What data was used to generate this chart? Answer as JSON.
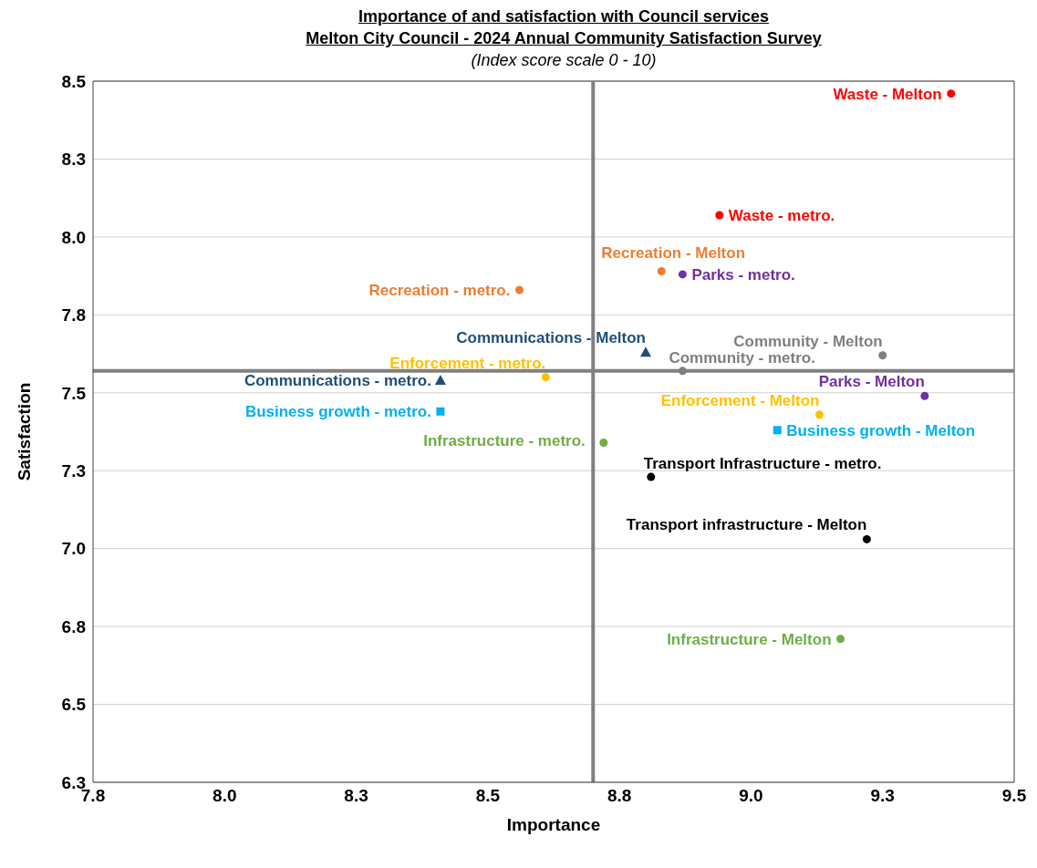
{
  "chart_data": {
    "type": "scatter",
    "title": "Importance of and satisfaction with Council services",
    "subtitle": "Melton City Council - 2024 Annual Community Satisfaction Survey",
    "annotations": [
      "(Index score scale 0 - 10)"
    ],
    "xlabel": "Importance",
    "ylabel": "Satisfaction",
    "xlim": [
      7.75,
      9.5
    ],
    "xticks": [
      {
        "value": 7.75,
        "label": "7.8"
      },
      {
        "value": 8.0,
        "label": "8.0"
      },
      {
        "value": 8.25,
        "label": "8.3"
      },
      {
        "value": 8.5,
        "label": "8.5"
      },
      {
        "value": 8.75,
        "label": "8.8"
      },
      {
        "value": 9.0,
        "label": "9.0"
      },
      {
        "value": 9.25,
        "label": "9.3"
      },
      {
        "value": 9.5,
        "label": "9.5"
      }
    ],
    "ylim": [
      6.25,
      8.5
    ],
    "yticks": [
      {
        "value": 6.25,
        "label": "6.3"
      },
      {
        "value": 6.5,
        "label": "6.5"
      },
      {
        "value": 6.75,
        "label": "6.8"
      },
      {
        "value": 7.0,
        "label": "7.0"
      },
      {
        "value": 7.25,
        "label": "7.3"
      },
      {
        "value": 7.5,
        "label": "7.5"
      },
      {
        "value": 7.75,
        "label": "7.8"
      },
      {
        "value": 8.0,
        "label": "8.0"
      },
      {
        "value": 8.25,
        "label": "8.3"
      },
      {
        "value": 8.5,
        "label": "8.5"
      }
    ],
    "grid": "y",
    "ref_lines": [
      {
        "axis": "x",
        "value": 8.7,
        "color": "#808080"
      },
      {
        "axis": "y",
        "value": 7.57,
        "color": "#808080"
      }
    ],
    "series": [
      {
        "name": "Waste - Melton",
        "color": "#ff0000",
        "marker": "circle",
        "x": [
          9.38
        ],
        "values": [
          8.46
        ]
      },
      {
        "name": "Waste - metro.",
        "color": "#ff0000",
        "marker": "circle",
        "x": [
          8.94
        ],
        "values": [
          8.07
        ]
      },
      {
        "name": "Recreation - Melton",
        "color": "#ed7d31",
        "marker": "circle",
        "x": [
          8.83
        ],
        "values": [
          7.89
        ]
      },
      {
        "name": "Parks - metro.",
        "color": "#7030a0",
        "marker": "circle",
        "x": [
          8.87
        ],
        "values": [
          7.88
        ]
      },
      {
        "name": "Community - Melton",
        "color": "#7f7f7f",
        "marker": "circle",
        "x": [
          9.25
        ],
        "values": [
          7.62
        ]
      },
      {
        "name": "Community - metro.",
        "color": "#7f7f7f",
        "marker": "circle",
        "x": [
          8.87
        ],
        "values": [
          7.57
        ]
      },
      {
        "name": "Communications - Melton",
        "color": "#1f4e79",
        "marker": "triangle",
        "x": [
          8.8
        ],
        "values": [
          7.63
        ]
      },
      {
        "name": "Parks - Melton",
        "color": "#7030a0",
        "marker": "circle",
        "x": [
          9.33
        ],
        "values": [
          7.49
        ]
      },
      {
        "name": "Enforcement - Melton",
        "color": "#ffc000",
        "marker": "circle",
        "x": [
          9.13
        ],
        "values": [
          7.43
        ]
      },
      {
        "name": "Business growth - Melton",
        "color": "#00b0f0",
        "marker": "square",
        "x": [
          9.05
        ],
        "values": [
          7.38
        ]
      },
      {
        "name": "Infrastructure - metro.",
        "color": "#70ad47",
        "marker": "circle",
        "x": [
          8.72
        ],
        "values": [
          7.34
        ]
      },
      {
        "name": "Transport Infrastructure - metro.",
        "color": "#000000",
        "marker": "circle",
        "x": [
          8.81
        ],
        "values": [
          7.23
        ]
      },
      {
        "name": "Transport infrastructure - Melton",
        "color": "#000000",
        "marker": "circle",
        "x": [
          9.22
        ],
        "values": [
          7.03
        ]
      },
      {
        "name": "Infrastructure - Melton",
        "color": "#70ad47",
        "marker": "circle",
        "x": [
          9.17
        ],
        "values": [
          6.71
        ]
      },
      {
        "name": "Recreation - metro.",
        "color": "#ed7d31",
        "marker": "circle",
        "x": [
          8.56
        ],
        "values": [
          7.83
        ]
      },
      {
        "name": "Enforcement - metro.",
        "color": "#ffc000",
        "marker": "circle",
        "x": [
          8.61
        ],
        "values": [
          7.55
        ]
      },
      {
        "name": "Communications - metro.",
        "color": "#1f4e79",
        "marker": "triangle",
        "x": [
          8.41
        ],
        "values": [
          7.54
        ]
      },
      {
        "name": "Business growth - metro.",
        "color": "#00b0f0",
        "marker": "square",
        "x": [
          8.41
        ],
        "values": [
          7.44
        ]
      }
    ]
  }
}
